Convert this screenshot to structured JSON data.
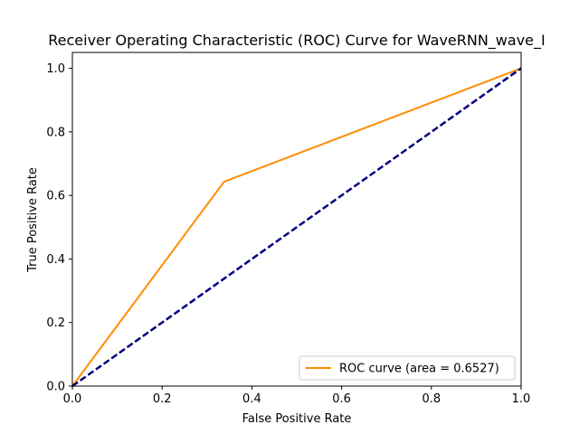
{
  "chart_data": {
    "type": "line",
    "title": "Receiver Operating Characteristic (ROC) Curve for WaveRNN_wave_I",
    "xlabel": "False Positive Rate",
    "ylabel": "True Positive Rate",
    "xlim": [
      0.0,
      1.0
    ],
    "ylim": [
      0.0,
      1.05
    ],
    "xticks": [
      "0.0",
      "0.2",
      "0.4",
      "0.6",
      "0.8",
      "1.0"
    ],
    "yticks": [
      "0.0",
      "0.2",
      "0.4",
      "0.6",
      "0.8",
      "1.0"
    ],
    "grid": false,
    "legend_position": "bottom-right",
    "series": [
      {
        "name": "ROC curve (area = 0.6527)",
        "color": "#ff8c00",
        "style": "solid",
        "x": [
          0.0,
          0.338,
          1.0
        ],
        "y": [
          0.0,
          0.643,
          1.0
        ]
      },
      {
        "color": "#000080",
        "style": "dashed",
        "x": [
          0.0,
          1.0
        ],
        "y": [
          0.0,
          1.0
        ]
      }
    ]
  }
}
